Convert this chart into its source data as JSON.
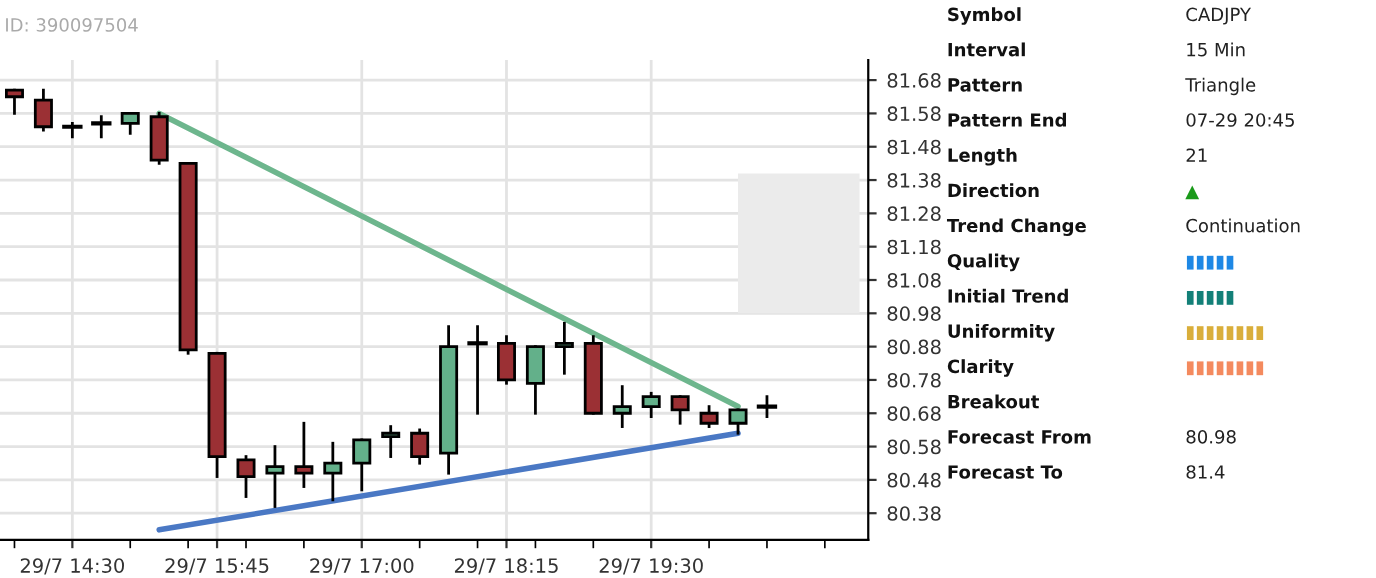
{
  "chart_data": [
    {
      "type": "candlestick",
      "annotations": [
        "ID: 390097504"
      ],
      "categories": [
        null,
        null,
        "29/7 14:30",
        null,
        null,
        null,
        null,
        "29/7 15:45",
        null,
        null,
        null,
        null,
        "29/7 17:00",
        null,
        null,
        null,
        null,
        "29/7 18:15",
        null,
        null,
        null,
        null,
        "29/7 19:30",
        null,
        null,
        null,
        null,
        null,
        null,
        null
      ],
      "ohlc": [
        [
          81.65,
          81.65,
          81.58,
          81.63
        ],
        [
          81.62,
          81.65,
          81.53,
          81.54
        ],
        [
          81.54,
          81.55,
          81.51,
          81.54
        ],
        [
          81.55,
          81.57,
          81.51,
          81.55
        ],
        [
          81.55,
          81.58,
          81.52,
          81.58
        ],
        [
          81.57,
          81.58,
          81.43,
          81.44
        ],
        [
          81.43,
          81.43,
          80.86,
          80.87
        ],
        [
          80.86,
          80.86,
          80.49,
          80.55
        ],
        [
          80.54,
          80.55,
          80.43,
          80.49
        ],
        [
          80.5,
          80.58,
          80.4,
          80.52
        ],
        [
          80.52,
          80.65,
          80.46,
          80.5
        ],
        [
          80.5,
          80.59,
          80.42,
          80.53
        ],
        [
          80.53,
          80.6,
          80.45,
          80.6
        ],
        [
          80.61,
          80.64,
          80.55,
          80.62
        ],
        [
          80.62,
          80.63,
          80.53,
          80.55
        ],
        [
          80.56,
          80.94,
          80.5,
          80.88
        ],
        [
          80.89,
          80.94,
          80.68,
          80.89
        ],
        [
          80.89,
          80.91,
          80.77,
          80.78
        ],
        [
          80.77,
          80.88,
          80.68,
          80.88
        ],
        [
          80.88,
          80.95,
          80.8,
          80.89
        ],
        [
          80.89,
          80.91,
          80.68,
          80.68
        ],
        [
          80.68,
          80.76,
          80.64,
          80.7
        ],
        [
          80.7,
          80.74,
          80.67,
          80.73
        ],
        [
          80.73,
          80.73,
          80.65,
          80.69
        ],
        [
          80.68,
          80.7,
          80.64,
          80.65
        ],
        [
          80.65,
          80.69,
          80.62,
          80.69
        ],
        [
          80.7,
          80.73,
          80.67,
          80.7
        ],
        null,
        null,
        null
      ],
      "colors": [
        "#9b3034",
        "#9b3034",
        "#000000",
        "#000000",
        "#63b08a",
        "#9b3034",
        "#9b3034",
        "#9b3034",
        "#9b3034",
        "#63b08a",
        "#9b3034",
        "#63b08a",
        "#63b08a",
        "#63b08a",
        "#9b3034",
        "#63b08a",
        "#000000",
        "#9b3034",
        "#63b08a",
        "#63b08a",
        "#9b3034",
        "#63b08a",
        "#63b08a",
        "#9b3034",
        "#9b3034",
        "#63b08a",
        "#000000",
        null,
        null,
        null
      ],
      "series": [
        {
          "type": "line",
          "values": [
            null,
            null,
            null,
            null,
            null,
            81.58,
            null,
            null,
            null,
            null,
            null,
            null,
            null,
            null,
            null,
            null,
            null,
            null,
            null,
            null,
            null,
            null,
            null,
            null,
            null,
            80.7,
            null,
            null,
            null,
            null
          ],
          "color": "#6db68d"
        },
        {
          "type": "line",
          "values": [
            null,
            null,
            null,
            null,
            null,
            80.33,
            null,
            null,
            null,
            null,
            null,
            null,
            null,
            null,
            null,
            null,
            null,
            null,
            null,
            null,
            null,
            null,
            null,
            null,
            null,
            80.62,
            null,
            null,
            null,
            null
          ],
          "color": "#4a78c4"
        }
      ],
      "bands": [
        {
          "axis": "y",
          "from": 80.98,
          "to": 81.4,
          "color": "#ebebeb"
        }
      ],
      "ylim": [
        80.3,
        81.74
      ],
      "yticks": [
        80.38,
        80.48,
        80.58,
        80.68,
        80.78,
        80.88,
        80.98,
        81.08,
        81.18,
        81.28,
        81.38,
        81.48,
        81.58,
        81.68
      ],
      "grid": true
    },
    {
      "type": "other",
      "categories": [
        "Symbol",
        "Interval",
        "Pattern",
        "Pattern End",
        "Length",
        "Direction",
        "Trend Change",
        "Quality",
        "Initial Trend",
        "Uniformity",
        "Clarity",
        "Breakout",
        "Forecast From",
        "Forecast To"
      ],
      "value_labels": [
        "CADJPY",
        "15 Min",
        "Triangle",
        "07-29 20:45",
        "21",
        "▲",
        "Continuation",
        "▮▮▮▮▮",
        "▮▮▮▮▮",
        "▮▮▮▮▮▮▮▮",
        "▮▮▮▮▮▮▮▮",
        null,
        "80.98",
        "81.4"
      ],
      "colors": [
        "#222222",
        "#222222",
        "#222222",
        "#222222",
        "#222222",
        "#1a9a1a",
        "#222222",
        "#1e88e5",
        "#138078",
        "#d9ae3a",
        "#f48a5e",
        null,
        "#222222",
        "#222222"
      ]
    }
  ]
}
